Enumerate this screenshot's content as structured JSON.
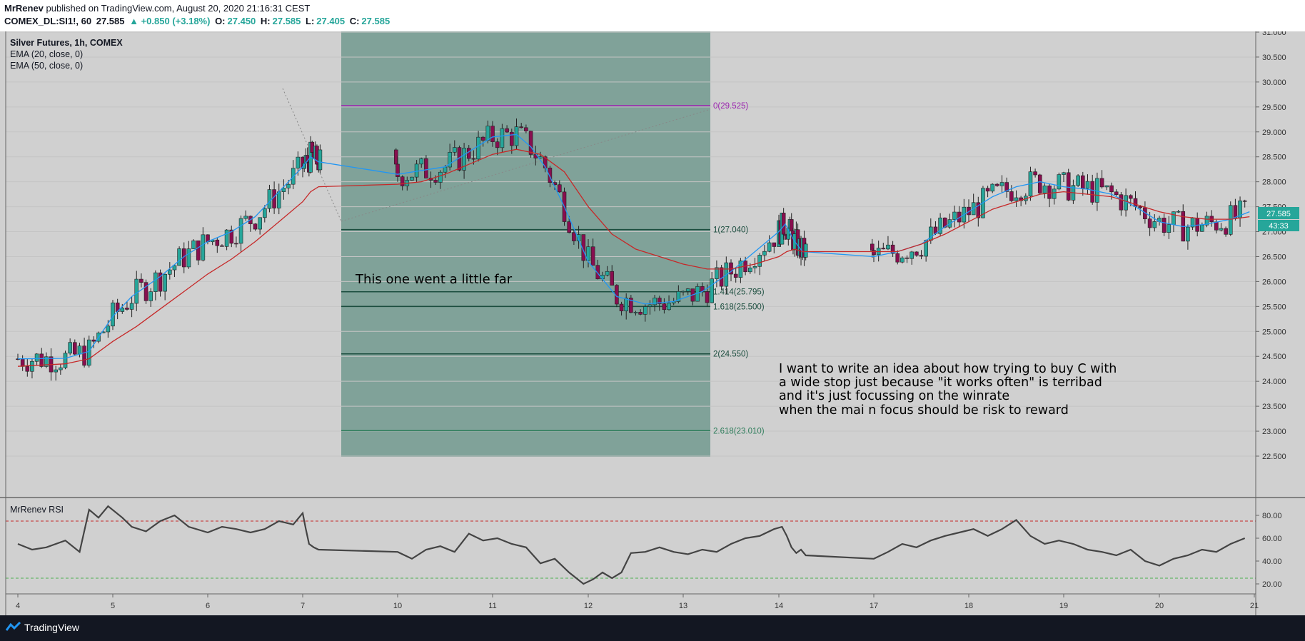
{
  "header": {
    "author": "MrRenev",
    "published_text": " published on TradingView.com, August 20, 2020 21:16:31 CEST",
    "symbol": "COMEX_DL:SI1!, 60",
    "last": "27.585",
    "change": "▲ +0.850 (+3.18%)",
    "o_label": "O:",
    "o_value": "27.450",
    "h_label": "H:",
    "h_value": "27.585",
    "l_label": "L:",
    "l_value": "27.405",
    "c_label": "C:",
    "c_value": "27.585"
  },
  "legend": {
    "title": "Silver Futures, 1h, COMEX",
    "ema1": "EMA (20, close, 0)",
    "ema2": "EMA (50, close, 0)",
    "rsi_title": "MrRenev RSI"
  },
  "annotations": {
    "box_note": "This one went a little far",
    "idea_lines": [
      "I want to write an idea about how trying to buy C with",
      "a wide stop just because \"it works often\" is terribad",
      "and it's just focussing on the winrate",
      "when the mai n focus should be risk to reward"
    ]
  },
  "price_tag": {
    "price": "27.585",
    "countdown": "43:33"
  },
  "footer": {
    "brand": "TradingView"
  },
  "colors": {
    "background": "#d0d0d0",
    "up_candle": "#26a69a",
    "down_candle": "#880e4f",
    "ema20": "#2196f3",
    "ema50": "#c62828",
    "fib_fill": "#1f6b57",
    "fib_zero": "#9c27b0",
    "fib_line": "#1b4d3e",
    "fib_ext": "#2e7d5b",
    "rsi_line": "#444444",
    "price_tag": "#26a69a"
  },
  "chart_data": [
    {
      "type": "candlestick",
      "title": "Silver Futures, 1h, COMEX",
      "x_ticks": [
        "4",
        "5",
        "6",
        "7",
        "10",
        "11",
        "12",
        "13",
        "14",
        "17",
        "18",
        "19",
        "20",
        "21"
      ],
      "y_ticks": [
        "22.500",
        "23.000",
        "23.500",
        "24.000",
        "24.500",
        "25.000",
        "25.500",
        "26.000",
        "26.500",
        "27.000",
        "27.500",
        "28.000",
        "28.500",
        "29.000",
        "29.500",
        "30.000",
        "30.500",
        "31.000"
      ],
      "ylim": [
        22.1,
        31.05
      ],
      "series": [
        {
          "name": "EMA (20, close, 0)",
          "points": [
            [
              4.0,
              24.45
            ],
            [
              4.5,
              24.46
            ],
            [
              4.75,
              24.6
            ],
            [
              5.0,
              25.3
            ],
            [
              5.2,
              25.7
            ],
            [
              5.5,
              26.1
            ],
            [
              5.75,
              26.5
            ],
            [
              6.0,
              26.8
            ],
            [
              6.25,
              27.0
            ],
            [
              6.5,
              27.3
            ],
            [
              6.75,
              27.8
            ],
            [
              7.0,
              28.3
            ],
            [
              7.25,
              28.5
            ],
            [
              7.5,
              28.4
            ],
            [
              10.0,
              28.15
            ],
            [
              10.5,
              28.3
            ],
            [
              10.75,
              28.6
            ],
            [
              11.0,
              28.9
            ],
            [
              11.25,
              28.95
            ],
            [
              11.4,
              28.7
            ],
            [
              11.55,
              28.3
            ],
            [
              11.75,
              27.5
            ],
            [
              12.0,
              26.4
            ],
            [
              12.3,
              25.7
            ],
            [
              12.6,
              25.55
            ],
            [
              12.9,
              25.6
            ],
            [
              13.2,
              25.8
            ],
            [
              13.5,
              26.2
            ],
            [
              13.75,
              26.6
            ],
            [
              14.0,
              27.0
            ],
            [
              14.2,
              27.15
            ],
            [
              14.5,
              26.8
            ],
            [
              14.75,
              26.6
            ],
            [
              17.0,
              26.5
            ],
            [
              17.25,
              26.6
            ],
            [
              17.5,
              26.75
            ],
            [
              17.75,
              27.1
            ],
            [
              18.0,
              27.4
            ],
            [
              18.25,
              27.7
            ],
            [
              18.5,
              27.9
            ],
            [
              18.75,
              28.0
            ],
            [
              19.0,
              27.9
            ],
            [
              19.25,
              27.85
            ],
            [
              19.5,
              27.75
            ],
            [
              19.75,
              27.5
            ],
            [
              20.0,
              27.2
            ],
            [
              20.25,
              27.1
            ],
            [
              20.5,
              27.15
            ],
            [
              20.75,
              27.25
            ],
            [
              20.95,
              27.4
            ]
          ]
        },
        {
          "name": "EMA (50, close, 0)",
          "points": [
            [
              4.0,
              24.3
            ],
            [
              4.5,
              24.35
            ],
            [
              4.75,
              24.45
            ],
            [
              5.0,
              24.8
            ],
            [
              5.25,
              25.1
            ],
            [
              5.5,
              25.45
            ],
            [
              5.75,
              25.8
            ],
            [
              6.0,
              26.15
            ],
            [
              6.25,
              26.45
            ],
            [
              6.5,
              26.8
            ],
            [
              6.75,
              27.2
            ],
            [
              7.0,
              27.6
            ],
            [
              7.25,
              27.8
            ],
            [
              7.5,
              27.9
            ],
            [
              10.0,
              27.95
            ],
            [
              10.25,
              28.0
            ],
            [
              10.5,
              28.15
            ],
            [
              10.75,
              28.35
            ],
            [
              11.0,
              28.55
            ],
            [
              11.25,
              28.65
            ],
            [
              11.5,
              28.55
            ],
            [
              11.75,
              28.2
            ],
            [
              12.0,
              27.5
            ],
            [
              12.25,
              26.95
            ],
            [
              12.5,
              26.65
            ],
            [
              12.75,
              26.5
            ],
            [
              13.0,
              26.35
            ],
            [
              13.25,
              26.25
            ],
            [
              13.5,
              26.25
            ],
            [
              13.75,
              26.35
            ],
            [
              14.0,
              26.5
            ],
            [
              14.25,
              26.6
            ],
            [
              14.5,
              26.65
            ],
            [
              14.75,
              26.6
            ],
            [
              17.0,
              26.6
            ],
            [
              17.25,
              26.6
            ],
            [
              17.5,
              26.75
            ],
            [
              17.75,
              26.95
            ],
            [
              18.0,
              27.2
            ],
            [
              18.25,
              27.45
            ],
            [
              18.5,
              27.6
            ],
            [
              18.75,
              27.75
            ],
            [
              19.0,
              27.8
            ],
            [
              19.25,
              27.75
            ],
            [
              19.5,
              27.7
            ],
            [
              19.75,
              27.55
            ],
            [
              20.0,
              27.4
            ],
            [
              20.25,
              27.3
            ],
            [
              20.5,
              27.25
            ],
            [
              20.75,
              27.25
            ],
            [
              20.95,
              27.3
            ]
          ]
        }
      ],
      "fib_levels": [
        {
          "label": "0(29.525)",
          "price": 29.525
        },
        {
          "label": "1(27.040)",
          "price": 27.04
        },
        {
          "label": "1.414(25.795)",
          "price": 25.795
        },
        {
          "label": "1.618(25.500)",
          "price": 25.5
        },
        {
          "label": "2(24.550)",
          "price": 24.55
        },
        {
          "label": "2.618(23.010)",
          "price": 23.01
        }
      ]
    },
    {
      "type": "line",
      "title": "MrRenev RSI",
      "y_ticks": [
        "20.00",
        "40.00",
        "60.00",
        "80.00"
      ],
      "ylim": [
        12,
        95
      ],
      "levels": [
        75,
        25
      ],
      "series": [
        {
          "name": "MrRenev RSI",
          "points": [
            [
              4.0,
              55
            ],
            [
              4.15,
              50
            ],
            [
              4.3,
              52
            ],
            [
              4.5,
              58
            ],
            [
              4.65,
              48
            ],
            [
              4.75,
              85
            ],
            [
              4.85,
              78
            ],
            [
              4.95,
              88
            ],
            [
              5.1,
              78
            ],
            [
              5.2,
              70
            ],
            [
              5.35,
              66
            ],
            [
              5.5,
              75
            ],
            [
              5.65,
              80
            ],
            [
              5.8,
              70
            ],
            [
              6.0,
              65
            ],
            [
              6.15,
              70
            ],
            [
              6.3,
              68
            ],
            [
              6.45,
              65
            ],
            [
              6.6,
              68
            ],
            [
              6.75,
              75
            ],
            [
              6.9,
              72
            ],
            [
              7.0,
              82
            ],
            [
              7.1,
              68
            ],
            [
              7.2,
              55
            ],
            [
              7.35,
              52
            ],
            [
              7.5,
              50
            ],
            [
              10.0,
              48
            ],
            [
              10.15,
              42
            ],
            [
              10.3,
              50
            ],
            [
              10.45,
              53
            ],
            [
              10.6,
              48
            ],
            [
              10.75,
              64
            ],
            [
              10.9,
              58
            ],
            [
              11.05,
              60
            ],
            [
              11.2,
              55
            ],
            [
              11.35,
              52
            ],
            [
              11.5,
              38
            ],
            [
              11.65,
              42
            ],
            [
              11.8,
              30
            ],
            [
              11.95,
              20
            ],
            [
              12.05,
              24
            ],
            [
              12.15,
              30
            ],
            [
              12.25,
              25
            ],
            [
              12.35,
              30
            ],
            [
              12.45,
              47
            ],
            [
              12.6,
              48
            ],
            [
              12.75,
              52
            ],
            [
              12.9,
              48
            ],
            [
              13.05,
              46
            ],
            [
              13.2,
              50
            ],
            [
              13.35,
              48
            ],
            [
              13.5,
              55
            ],
            [
              13.65,
              60
            ],
            [
              13.8,
              62
            ],
            [
              13.95,
              68
            ],
            [
              14.1,
              70
            ],
            [
              14.25,
              62
            ],
            [
              14.4,
              52
            ],
            [
              14.55,
              47
            ],
            [
              14.7,
              50
            ],
            [
              14.85,
              45
            ],
            [
              17.0,
              42
            ],
            [
              17.15,
              48
            ],
            [
              17.3,
              55
            ],
            [
              17.45,
              52
            ],
            [
              17.6,
              58
            ],
            [
              17.75,
              62
            ],
            [
              17.9,
              65
            ],
            [
              18.05,
              68
            ],
            [
              18.2,
              62
            ],
            [
              18.35,
              68
            ],
            [
              18.5,
              76
            ],
            [
              18.65,
              62
            ],
            [
              18.8,
              55
            ],
            [
              18.95,
              58
            ],
            [
              19.1,
              55
            ],
            [
              19.25,
              50
            ],
            [
              19.4,
              48
            ],
            [
              19.55,
              45
            ],
            [
              19.7,
              50
            ],
            [
              19.85,
              40
            ],
            [
              20.0,
              36
            ],
            [
              20.15,
              42
            ],
            [
              20.3,
              45
            ],
            [
              20.45,
              50
            ],
            [
              20.6,
              48
            ],
            [
              20.75,
              55
            ],
            [
              20.9,
              60
            ]
          ]
        }
      ]
    }
  ]
}
